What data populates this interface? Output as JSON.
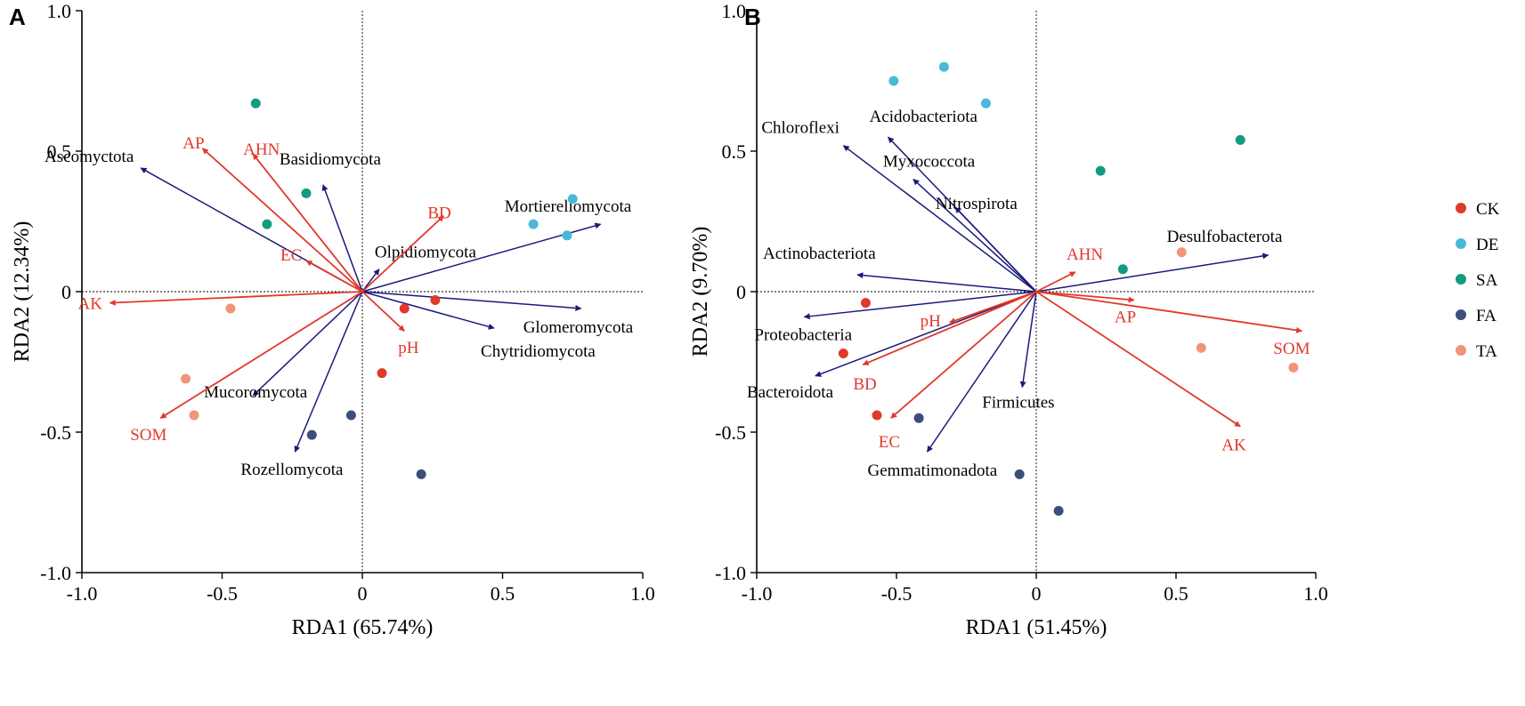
{
  "colors": {
    "species_arrow": "#1a1a7a",
    "env_arrow": "#e0392b",
    "env_text": "#e0392b",
    "CK": "#e0392b",
    "DE": "#4ab8d8",
    "SA": "#139b7f",
    "FA": "#3c4e7a",
    "TA": "#f29478"
  },
  "legend": {
    "items": [
      {
        "key": "CK",
        "label": "CK"
      },
      {
        "key": "DE",
        "label": "DE"
      },
      {
        "key": "SA",
        "label": "SA"
      },
      {
        "key": "FA",
        "label": "FA"
      },
      {
        "key": "TA",
        "label": "TA"
      }
    ]
  },
  "chart_data": [
    {
      "type": "scatter",
      "panel": "A",
      "xlabel": "RDA1 (65.74%)",
      "ylabel": "RDA2 (12.34%)",
      "xlim": [
        -1.0,
        1.0
      ],
      "ylim": [
        -1.0,
        1.0
      ],
      "xticks": [
        "-1.0",
        "-0.5",
        "0",
        "0.5",
        "1.0"
      ],
      "yticks": [
        "-1.0",
        "-0.5",
        "0",
        "0.5",
        "1.0"
      ],
      "species": [
        {
          "name": "Ascomyctota",
          "x": -0.79,
          "y": 0.44
        },
        {
          "name": "Basidiomycota",
          "x": -0.14,
          "y": 0.38
        },
        {
          "name": "Mortierellomycota",
          "x": 0.85,
          "y": 0.24
        },
        {
          "name": "Olpidiomycota",
          "x": 0.06,
          "y": 0.08
        },
        {
          "name": "Glomeromycota",
          "x": 0.78,
          "y": -0.06
        },
        {
          "name": "Chytridiomycota",
          "x": 0.47,
          "y": -0.13
        },
        {
          "name": "Mucoromycota",
          "x": -0.39,
          "y": -0.37
        },
        {
          "name": "Rozellomycota",
          "x": -0.24,
          "y": -0.57
        }
      ],
      "env": [
        {
          "name": "AP",
          "x": -0.57,
          "y": 0.51
        },
        {
          "name": "AHN",
          "x": -0.39,
          "y": 0.49
        },
        {
          "name": "BD",
          "x": 0.29,
          "y": 0.27
        },
        {
          "name": "EC",
          "x": -0.2,
          "y": 0.11
        },
        {
          "name": "AK",
          "x": -0.9,
          "y": -0.04
        },
        {
          "name": "pH",
          "x": 0.15,
          "y": -0.14
        },
        {
          "name": "SOM",
          "x": -0.72,
          "y": -0.45
        }
      ],
      "samples": [
        {
          "group": "SA",
          "x": -0.38,
          "y": 0.67
        },
        {
          "group": "SA",
          "x": -0.2,
          "y": 0.35
        },
        {
          "group": "SA",
          "x": -0.34,
          "y": 0.24
        },
        {
          "group": "DE",
          "x": 0.75,
          "y": 0.33
        },
        {
          "group": "DE",
          "x": 0.61,
          "y": 0.24
        },
        {
          "group": "DE",
          "x": 0.73,
          "y": 0.2
        },
        {
          "group": "CK",
          "x": 0.26,
          "y": -0.03
        },
        {
          "group": "CK",
          "x": 0.15,
          "y": -0.06
        },
        {
          "group": "CK",
          "x": 0.07,
          "y": -0.29
        },
        {
          "group": "TA",
          "x": -0.47,
          "y": -0.06
        },
        {
          "group": "TA",
          "x": -0.63,
          "y": -0.31
        },
        {
          "group": "TA",
          "x": -0.6,
          "y": -0.44
        },
        {
          "group": "FA",
          "x": -0.04,
          "y": -0.44
        },
        {
          "group": "FA",
          "x": -0.18,
          "y": -0.51
        },
        {
          "group": "FA",
          "x": 0.21,
          "y": -0.65
        }
      ]
    },
    {
      "type": "scatter",
      "panel": "B",
      "xlabel": "RDA1 (51.45%)",
      "ylabel": "RDA2 (9.70%)",
      "xlim": [
        -1.0,
        1.0
      ],
      "ylim": [
        -1.0,
        1.0
      ],
      "xticks": [
        "-1.0",
        "-0.5",
        "0",
        "0.5",
        "1.0"
      ],
      "yticks": [
        "-1.0",
        "-0.5",
        "0",
        "0.5",
        "1.0"
      ],
      "species": [
        {
          "name": "Chloroflexi",
          "x": -0.69,
          "y": 0.52
        },
        {
          "name": "Acidobacteriota",
          "x": -0.53,
          "y": 0.55
        },
        {
          "name": "Myxococcota",
          "x": -0.44,
          "y": 0.4
        },
        {
          "name": "Nitrospirota",
          "x": -0.29,
          "y": 0.3
        },
        {
          "name": "Actinobacteriota",
          "x": -0.64,
          "y": 0.06
        },
        {
          "name": "Desulfobacterota",
          "x": 0.83,
          "y": 0.13
        },
        {
          "name": "Proteobacteria",
          "x": -0.83,
          "y": -0.09
        },
        {
          "name": "Bacteroidota",
          "x": -0.79,
          "y": -0.3
        },
        {
          "name": "Firmicutes",
          "x": -0.05,
          "y": -0.34
        },
        {
          "name": "Gemmatimonadota",
          "x": -0.39,
          "y": -0.57
        }
      ],
      "env": [
        {
          "name": "AHN",
          "x": 0.14,
          "y": 0.07
        },
        {
          "name": "AP",
          "x": 0.35,
          "y": -0.03
        },
        {
          "name": "SOM",
          "x": 0.95,
          "y": -0.14
        },
        {
          "name": "AK",
          "x": 0.73,
          "y": -0.48
        },
        {
          "name": "pH",
          "x": -0.31,
          "y": -0.11
        },
        {
          "name": "BD",
          "x": -0.62,
          "y": -0.26
        },
        {
          "name": "EC",
          "x": -0.52,
          "y": -0.45
        }
      ],
      "samples": [
        {
          "group": "DE",
          "x": -0.33,
          "y": 0.8
        },
        {
          "group": "DE",
          "x": -0.51,
          "y": 0.75
        },
        {
          "group": "DE",
          "x": -0.18,
          "y": 0.67
        },
        {
          "group": "SA",
          "x": 0.73,
          "y": 0.54
        },
        {
          "group": "SA",
          "x": 0.23,
          "y": 0.43
        },
        {
          "group": "SA",
          "x": 0.31,
          "y": 0.08
        },
        {
          "group": "TA",
          "x": 0.52,
          "y": 0.14
        },
        {
          "group": "TA",
          "x": 0.59,
          "y": -0.2
        },
        {
          "group": "TA",
          "x": 0.92,
          "y": -0.27
        },
        {
          "group": "CK",
          "x": -0.61,
          "y": -0.04
        },
        {
          "group": "CK",
          "x": -0.69,
          "y": -0.22
        },
        {
          "group": "CK",
          "x": -0.57,
          "y": -0.44
        },
        {
          "group": "FA",
          "x": -0.42,
          "y": -0.45
        },
        {
          "group": "FA",
          "x": -0.06,
          "y": -0.65
        },
        {
          "group": "FA",
          "x": 0.08,
          "y": -0.78
        }
      ]
    }
  ]
}
